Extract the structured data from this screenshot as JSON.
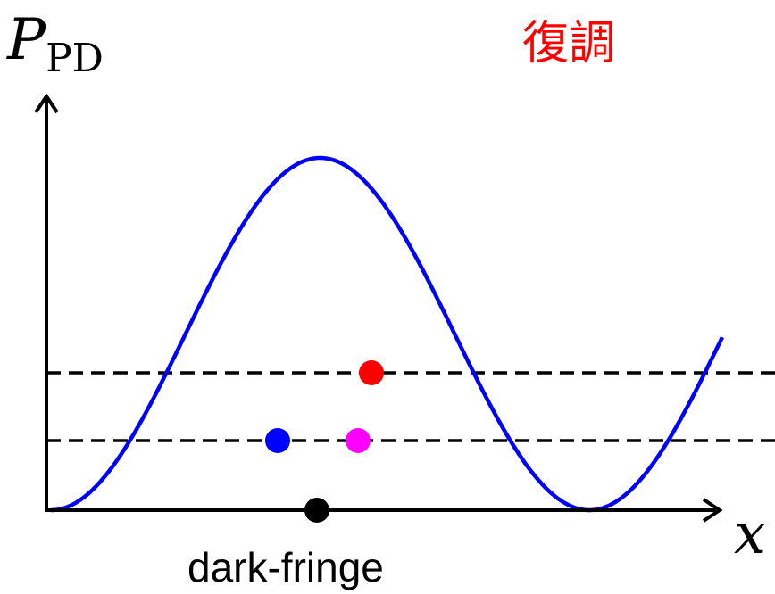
{
  "labels": {
    "y_axis_main": "P",
    "y_axis_sub": "PD",
    "x_axis": "x",
    "title": "復調",
    "bottom_label": "dark-fringe"
  },
  "colors": {
    "curve": "#0000ff",
    "axis": "#000000",
    "dashed": "#000000",
    "title": "#ff0000",
    "point_blue": "#0000ff",
    "point_magenta": "#ff00ff",
    "point_red": "#ff0000",
    "point_black": "#000000"
  },
  "diagram": {
    "curve": "cosine intensity vs displacement",
    "dashed_levels": 2,
    "points": [
      "blue",
      "magenta",
      "red",
      "black"
    ]
  }
}
